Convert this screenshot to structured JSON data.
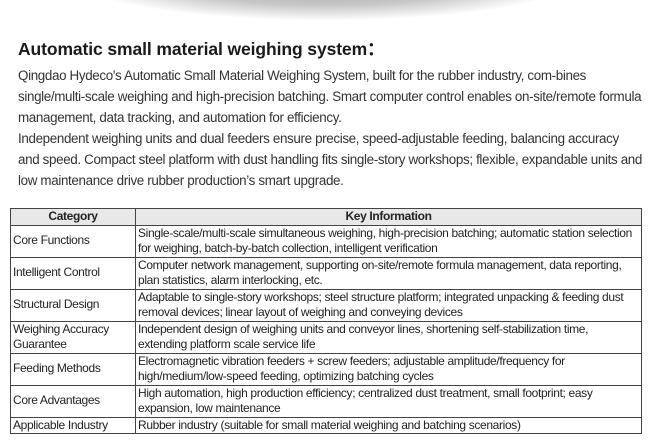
{
  "title": "Automatic small material weighing system：",
  "intro": [
    "Qingdao Hydeco's Automatic Small Material Weighing System, built for the rubber industry, com-bines single/multi-scale weighing and high-precision batching. Smart computer control enables on-site/remote formula management, data tracking, and automation for efficiency.",
    "Independent weighing units and dual feeders ensure precise, speed-adjustable feeding, balancing accuracy and speed. Compact steel platform with dust handling fits single-story workshops; flexible, expandable units and low maintenance drive rubber production’s smart upgrade."
  ],
  "table": {
    "headers": [
      "Category",
      "Key Information"
    ],
    "rows": [
      {
        "category": "Core Functions",
        "info": "Single-scale/multi-scale simultaneous weighing, high-precision batching; automatic station selection for weighing, batch-by-batch collection, intelligent verification"
      },
      {
        "category": "Intelligent Control",
        "info": "Computer network management, supporting on-site/remote formula management, data reporting, plan statistics, alarm interlocking, etc."
      },
      {
        "category": "Structural Design",
        "info": "Adaptable to single-story workshops; steel structure platform; integrated unpacking & feeding dust removal devices; linear layout of weighing and conveying devices"
      },
      {
        "category": "Weighing Accuracy Guarantee",
        "info": "Independent design of weighing units and conveyor lines, shortening self-stabilization time, extending platform scale service life"
      },
      {
        "category": "Feeding Methods",
        "info": "Electromagnetic vibration feeders + screw feeders; adjustable amplitude/frequency for high/medium/low-speed feeding, optimizing batching cycles"
      },
      {
        "category": "Core Advantages",
        "info": "High automation, high production efficiency; centralized dust treatment, small footprint; easy expansion, low maintenance"
      },
      {
        "category": "Applicable Industry",
        "info": "Rubber industry (suitable for small material weighing and batching scenarios)"
      }
    ]
  }
}
